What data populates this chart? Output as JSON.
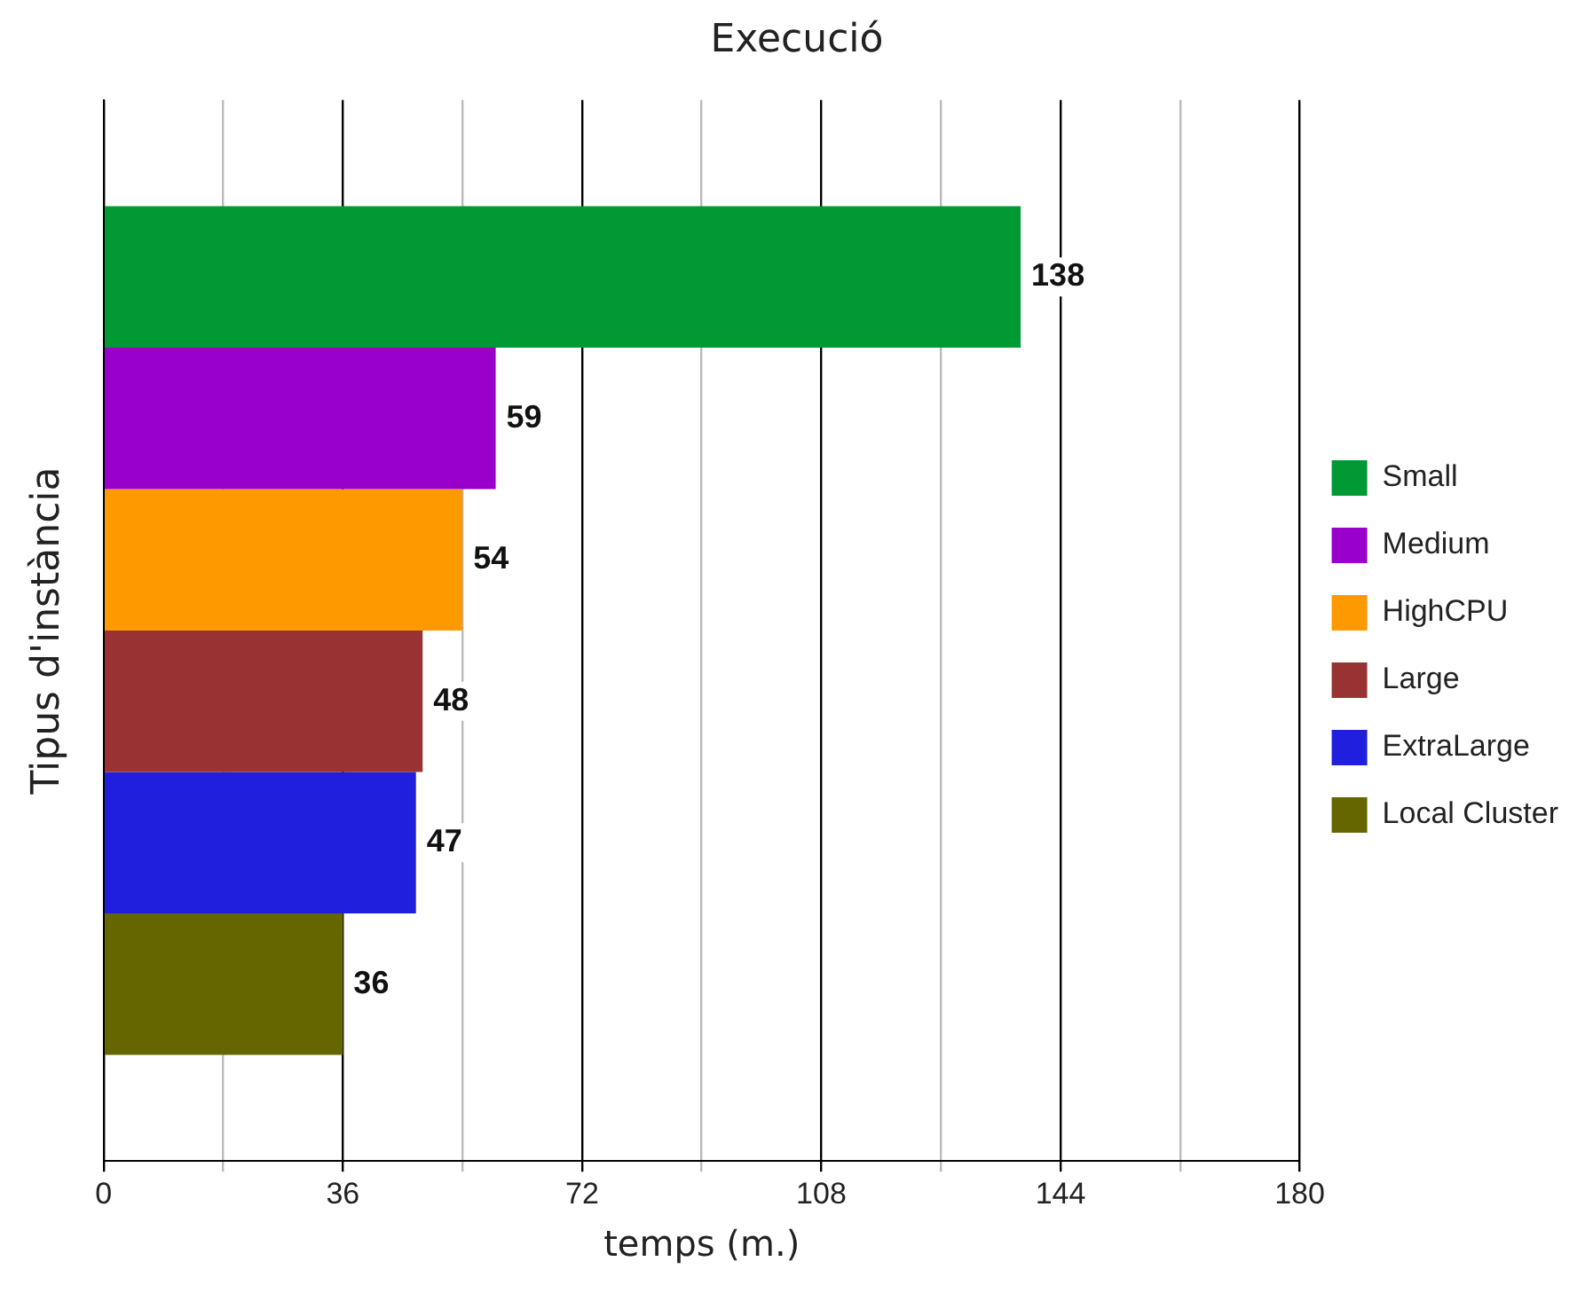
{
  "chart_data": {
    "type": "bar",
    "orientation": "horizontal",
    "title": "Execució",
    "xlabel": "temps (m.)",
    "ylabel": "Tipus d'instància",
    "categories": [
      null
    ],
    "series": [
      {
        "name": "Small",
        "color": "#009933",
        "values": [
          138
        ]
      },
      {
        "name": "Medium",
        "color": "#9900cc",
        "values": [
          59
        ]
      },
      {
        "name": "HighCPU",
        "color": "#ff9900",
        "values": [
          54
        ]
      },
      {
        "name": "Large",
        "color": "#993333",
        "values": [
          48
        ]
      },
      {
        "name": "ExtraLarge",
        "color": "#1f1fdd",
        "values": [
          47
        ]
      },
      {
        "name": "Local Cluster",
        "color": "#666600",
        "values": [
          36
        ]
      }
    ],
    "xlim": [
      0,
      180
    ],
    "xticks": [
      0,
      {
        "value": 18,
        "label": null
      },
      36,
      {
        "value": 54,
        "label": null
      },
      72,
      {
        "value": 90,
        "label": null
      },
      108,
      {
        "value": 126,
        "label": null
      },
      144,
      {
        "value": 162,
        "label": null
      },
      180
    ],
    "grid": "x",
    "legend": "right",
    "data_labels": true
  }
}
